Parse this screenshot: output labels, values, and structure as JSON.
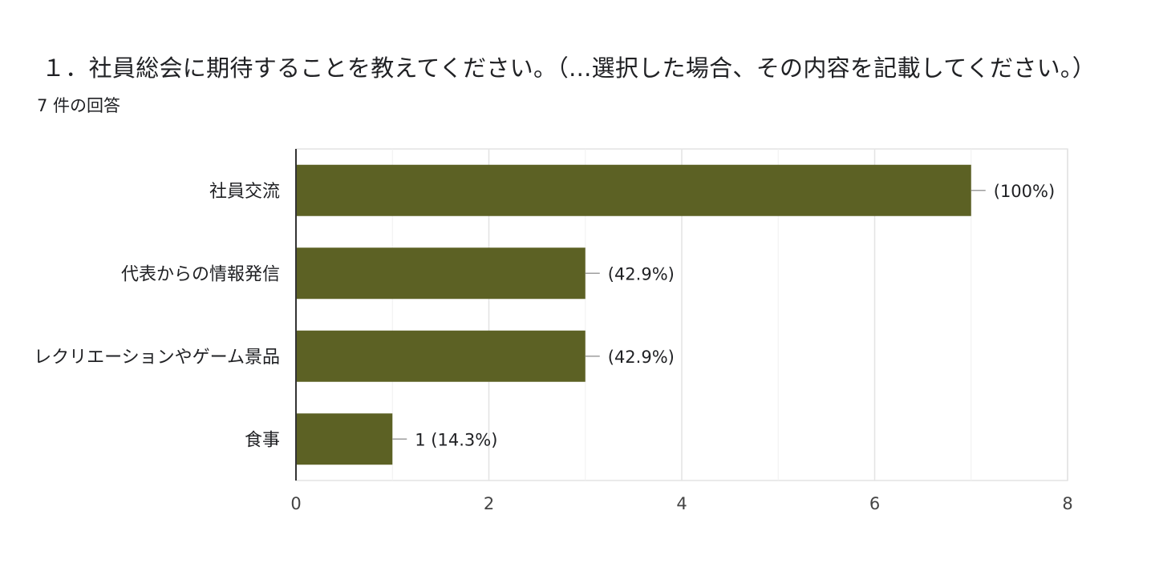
{
  "header": {
    "title": "１．社員総会に期待することを教えてください。（...選択した場合、その内容を記載してください。）",
    "response_count": "7 件の回答"
  },
  "colors": {
    "bar": "#5c6124",
    "grid": "#e3e3e3",
    "axis": "#333333",
    "leader": "#9e9e9e",
    "label": "#202124"
  },
  "chart_data": {
    "type": "bar",
    "orientation": "horizontal",
    "categories": [
      "社員交流",
      "代表からの情報発信",
      "レクリエーションやゲーム景品",
      "食事"
    ],
    "values": [
      7,
      3,
      3,
      1
    ],
    "value_labels": [
      "(100%)",
      "(42.9%)",
      "(42.9%)",
      "1 (14.3%)"
    ],
    "xlim": [
      0,
      8
    ],
    "xticks": [
      "0",
      "2",
      "4",
      "6",
      "8"
    ],
    "grid": true
  }
}
